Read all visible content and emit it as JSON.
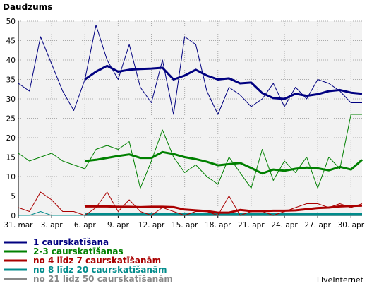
{
  "chart_data": {
    "type": "line",
    "title": "Daudzums",
    "ylim": [
      0,
      50
    ],
    "yticks": [
      0,
      5,
      10,
      15,
      20,
      25,
      30,
      35,
      40,
      45,
      50
    ],
    "x": [
      "31. mar",
      "1. apr",
      "2. apr",
      "3. apr",
      "4. apr",
      "5. apr",
      "6. apr",
      "7. apr",
      "8. apr",
      "9. apr",
      "10. apr",
      "11. apr",
      "12. apr",
      "13. apr",
      "14. apr",
      "15. apr",
      "16. apr",
      "17. apr",
      "18. apr",
      "19. apr",
      "20. apr",
      "21. apr",
      "22. apr",
      "23. apr",
      "24. apr",
      "25. apr",
      "26. apr",
      "27. apr",
      "28. apr",
      "29. apr",
      "30. apr",
      "1. mai"
    ],
    "xtick_labels": [
      {
        "index": 0,
        "label": "31. mar"
      },
      {
        "index": 3,
        "label": "3. apr"
      },
      {
        "index": 6,
        "label": "6. apr"
      },
      {
        "index": 9,
        "label": "9. apr"
      },
      {
        "index": 12,
        "label": "12. apr"
      },
      {
        "index": 15,
        "label": "15. apr"
      },
      {
        "index": 18,
        "label": "18. apr"
      },
      {
        "index": 21,
        "label": "21. apr"
      },
      {
        "index": 24,
        "label": "24. apr"
      },
      {
        "index": 27,
        "label": "27. apr"
      },
      {
        "index": 30,
        "label": "30. apr"
      }
    ],
    "grid": true,
    "series": [
      {
        "name": "1 caurskatīšana",
        "color": "#000080",
        "values": [
          34,
          32,
          46,
          39,
          32,
          27,
          35,
          49,
          40,
          35,
          44,
          33,
          29,
          40,
          26,
          46,
          44,
          32,
          26,
          33,
          31,
          28,
          30,
          34,
          28,
          33,
          30,
          35,
          34,
          32,
          29,
          29
        ],
        "smooth_start": 6,
        "smooth": [
          35,
          37,
          38.5,
          37,
          37.5,
          37.7,
          37.8,
          38,
          35,
          36,
          37.5,
          36,
          35,
          35.3,
          34,
          34.2,
          31.5,
          30.2,
          30,
          31.3,
          30.8,
          31.2,
          32,
          32.3,
          31.6,
          31.3
        ]
      },
      {
        "name": "2-3 caurskatīšanas",
        "color": "#008000",
        "values": [
          16,
          14,
          15,
          16,
          14,
          13,
          12,
          17,
          18,
          17,
          19,
          7,
          14,
          22,
          15,
          11,
          13,
          10,
          8,
          15,
          11,
          7,
          17,
          9,
          14,
          11,
          15,
          7,
          15,
          12,
          26,
          26
        ],
        "smooth_start": 6,
        "smooth": [
          14,
          14.3,
          14.8,
          15.3,
          15.7,
          14.8,
          14.8,
          16.3,
          15.8,
          15,
          14.5,
          13.8,
          12.9,
          13.2,
          13.5,
          12.2,
          10.8,
          11.8,
          11.5,
          12,
          12.3,
          12.1,
          11.6,
          12.5,
          11.8,
          14.3
        ]
      },
      {
        "name": "no 4 līdz 7 caurskatīšanām",
        "color": "#aa0000",
        "values": [
          2,
          1,
          6,
          4,
          1,
          1,
          0,
          2,
          6,
          1,
          4,
          1,
          0,
          2,
          1,
          0,
          1,
          1,
          0,
          5,
          0,
          1,
          1,
          0,
          1,
          2,
          3,
          3,
          2,
          3,
          2,
          3
        ],
        "smooth_start": 6,
        "smooth": [
          2.3,
          2.3,
          2.3,
          2.2,
          2.2,
          2.1,
          2.2,
          2.2,
          2.1,
          1.5,
          1.3,
          1.1,
          0.7,
          0.7,
          1.4,
          1.1,
          1.1,
          1.2,
          1.2,
          1.3,
          1.6,
          1.9,
          2,
          2.3,
          2.4,
          2.5
        ]
      },
      {
        "name": "no 8 līdz 20 caurskatīšanām",
        "color": "#008b8b",
        "values": [
          0,
          0,
          1,
          0,
          0,
          0,
          0,
          0,
          0,
          0,
          0,
          0,
          0,
          0,
          0,
          0,
          0,
          0,
          0,
          0,
          0,
          0,
          0,
          0,
          0,
          0,
          0,
          0,
          0,
          0,
          0,
          0
        ],
        "smooth_start": 6,
        "smooth": [
          0.3,
          0.3,
          0.3,
          0.3,
          0.3,
          0.3,
          0.3,
          0.3,
          0.3,
          0.3,
          0.3,
          0.3,
          0.3,
          0.3,
          0.3,
          0.3,
          0.3,
          0.3,
          0.3,
          0.3,
          0.3,
          0.3,
          0.3,
          0.3,
          0.3,
          0.3
        ]
      },
      {
        "name": "no 21 līdz 50 caurskatīšanām",
        "color": "#888888",
        "values": [
          0,
          0,
          0,
          0,
          0,
          0,
          0,
          0,
          0,
          0,
          0,
          0,
          0,
          0,
          0,
          0,
          0,
          0,
          0,
          0,
          0,
          0,
          0,
          0,
          0,
          0,
          0,
          0,
          0,
          0,
          0,
          0
        ],
        "smooth_start": 6,
        "smooth": [
          0.1,
          0.1,
          0.1,
          0.1,
          0.1,
          0.1,
          0.1,
          0.1,
          0.1,
          0.1,
          0.1,
          0.1,
          0.1,
          0.1,
          0.1,
          0.1,
          0.1,
          0.1,
          0.1,
          0.1,
          0.1,
          0.1,
          0.1,
          0.1,
          0.1,
          0.1
        ]
      }
    ]
  },
  "watermark": "LiveInternet",
  "colors": {
    "plot_bg": "#f2f2f2",
    "grid": "#aaaaaa"
  }
}
